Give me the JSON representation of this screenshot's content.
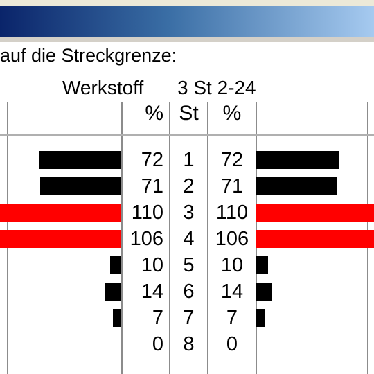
{
  "window": {
    "title": ""
  },
  "heading": "auf die Streckgrenze:",
  "material": {
    "label": "Werkstoff",
    "value": "3  St 2-24"
  },
  "columns": {
    "left_pct": "%",
    "st": "St",
    "right_pct": "%"
  },
  "colors": {
    "normal": "#000000",
    "over_limit": "#ff0000",
    "grid": "#8c8c8c",
    "titlebar_start": "#0a246a",
    "titlebar_end": "#a6caf0"
  },
  "chart_data": {
    "type": "bar",
    "title": "",
    "categories": [
      "1",
      "2",
      "3",
      "4",
      "5",
      "6",
      "7",
      "8"
    ],
    "series": [
      {
        "values": [
          72,
          71,
          110,
          106,
          10,
          14,
          7,
          0
        ]
      },
      {
        "values": [
          72,
          71,
          110,
          106,
          10,
          14,
          7,
          0
        ]
      }
    ],
    "over_limit": [
      false,
      false,
      true,
      true,
      false,
      false,
      false,
      false
    ],
    "xlabel": "",
    "ylabel": "",
    "grid": true
  }
}
